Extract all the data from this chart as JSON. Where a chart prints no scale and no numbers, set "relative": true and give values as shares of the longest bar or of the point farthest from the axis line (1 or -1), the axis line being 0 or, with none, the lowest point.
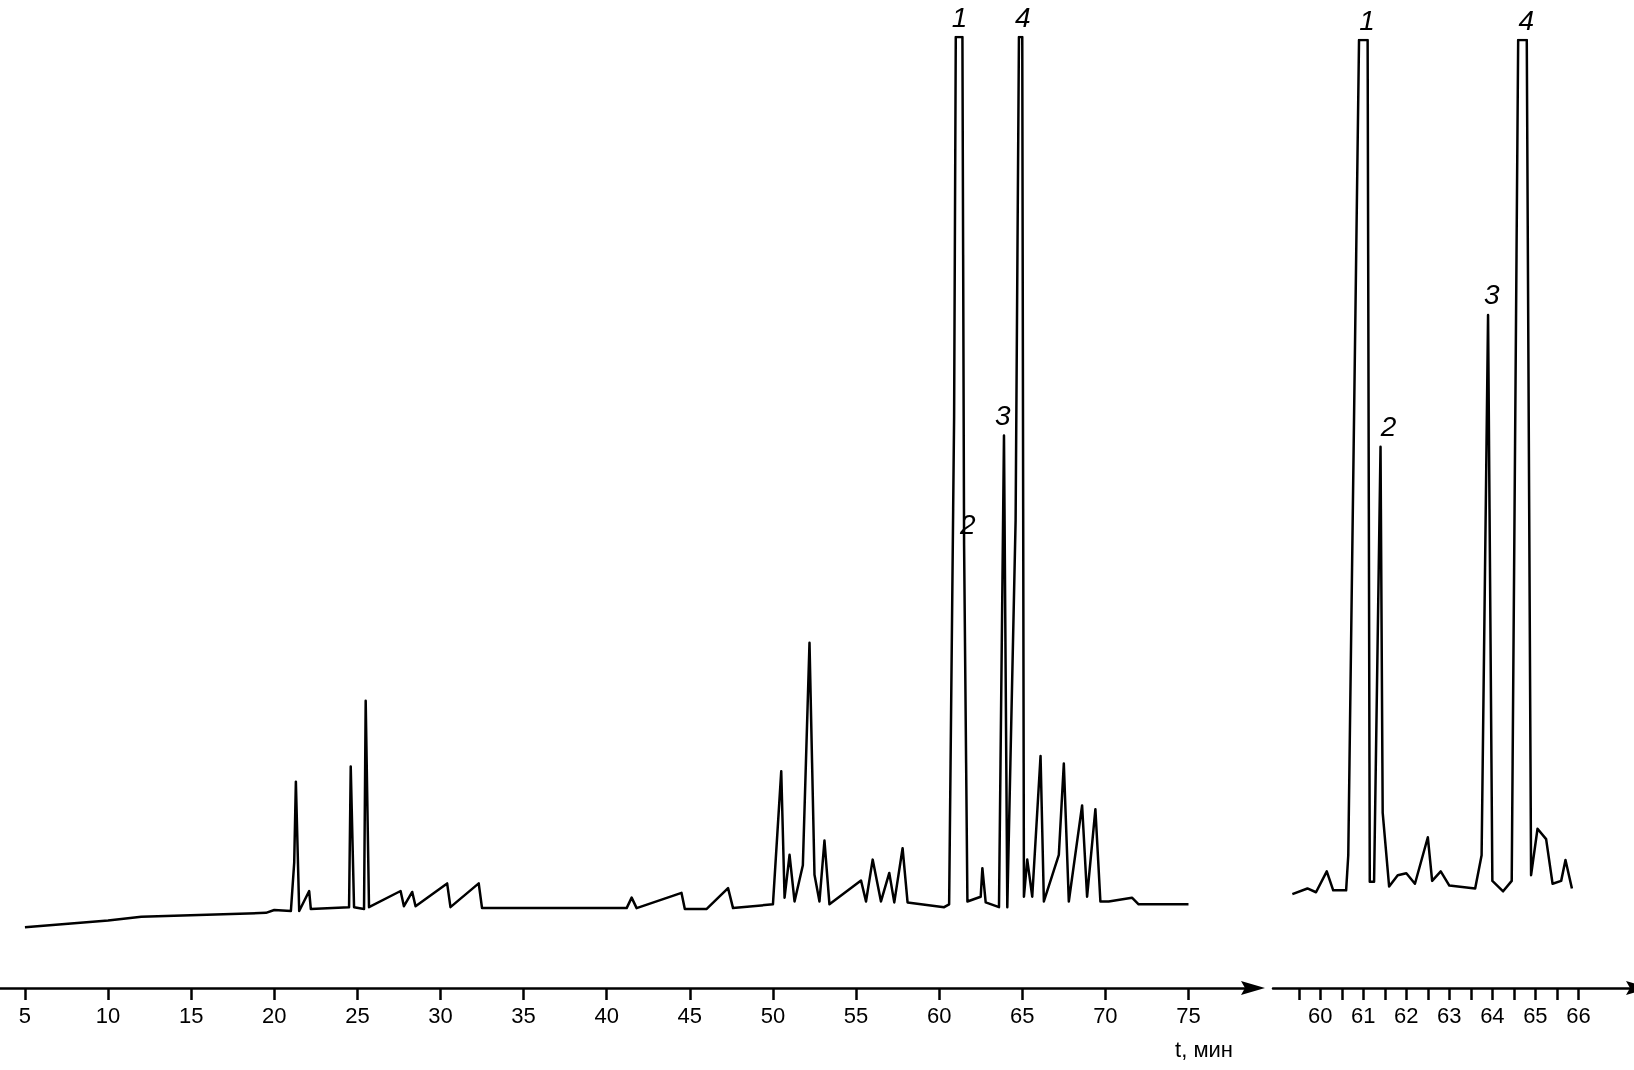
{
  "chart_data": [
    {
      "type": "line",
      "relative": true,
      "color": "#000000",
      "xlabel": "t, мин",
      "tick_labels": "x",
      "xlim": [
        3.5,
        78.4
      ],
      "xticks": [
        5,
        10,
        15,
        20,
        25,
        30,
        35,
        40,
        45,
        50,
        55,
        60,
        65,
        70,
        75
      ],
      "x": [
        5,
        10,
        12,
        19.5,
        20,
        21,
        21.2,
        21.3,
        21.5,
        22.1,
        22.2,
        24.5,
        24.6,
        24.8,
        25.4,
        25.5,
        25.7,
        27.6,
        27.8,
        28.3,
        28.5,
        30.4,
        30.6,
        32.3,
        32.5,
        41.2,
        41.5,
        41.8,
        44.5,
        44.7,
        46,
        47.3,
        47.6,
        50,
        50.5,
        50.7,
        51,
        51.3,
        51.8,
        52.2,
        52.5,
        52.8,
        53.1,
        53.4,
        55.3,
        55.6,
        56,
        56.5,
        57,
        57.3,
        57.8,
        58.1,
        60.3,
        60.6,
        60.9,
        61,
        61.4,
        61.5,
        61.7,
        62.5,
        62.6,
        62.8,
        63.6,
        63.9,
        64.1,
        64.6,
        64.8,
        65,
        65.1,
        65.3,
        65.6,
        66.1,
        66.3,
        67.2,
        67.5,
        67.8,
        68.6,
        68.9,
        69.4,
        69.7,
        70.2,
        71.6,
        72,
        75
      ],
      "values": [
        0.064,
        0.071,
        0.075,
        0.079,
        0.082,
        0.081,
        0.132,
        0.217,
        0.081,
        0.102,
        0.083,
        0.085,
        0.233,
        0.085,
        0.083,
        0.302,
        0.085,
        0.102,
        0.086,
        0.101,
        0.086,
        0.11,
        0.085,
        0.11,
        0.084,
        0.084,
        0.095,
        0.084,
        0.1,
        0.083,
        0.083,
        0.105,
        0.084,
        0.088,
        0.228,
        0.095,
        0.14,
        0.091,
        0.129,
        0.363,
        0.119,
        0.091,
        0.155,
        0.088,
        0.113,
        0.091,
        0.135,
        0.091,
        0.121,
        0.09,
        0.147,
        0.09,
        0.085,
        0.088,
        0.601,
        1,
        1,
        0.466,
        0.091,
        0.096,
        0.126,
        0.09,
        0.085,
        0.581,
        0.085,
        0.492,
        1,
        1,
        0.096,
        0.135,
        0.096,
        0.244,
        0.091,
        0.14,
        0.236,
        0.091,
        0.192,
        0.096,
        0.188,
        0.091,
        0.091,
        0.095,
        0.088,
        0.088
      ],
      "annotations": [
        {
          "text": "1",
          "x": 61.0,
          "y": 1
        },
        {
          "text": "2",
          "x": 61.5,
          "y": 0.466
        },
        {
          "text": "3",
          "x": 63.6,
          "y": 0.581
        },
        {
          "text": "4",
          "x": 64.8,
          "y": 1
        }
      ]
    },
    {
      "type": "line",
      "relative": true,
      "color": "#000000",
      "tick_labels": "x",
      "xlim": [
        58.9,
        67.2
      ],
      "xticks": [
        {
          "value": 59.5,
          "label": null
        },
        60,
        {
          "value": 60.5,
          "label": null
        },
        61,
        {
          "value": 61.5,
          "label": null
        },
        62,
        {
          "value": 62.5,
          "label": null
        },
        63,
        {
          "value": 63.5,
          "label": null
        },
        64,
        {
          "value": 64.5,
          "label": null
        },
        65,
        {
          "value": 65.5,
          "label": null
        },
        66
      ],
      "x": [
        59.35,
        59.7,
        59.9,
        60.15,
        60.3,
        60.6,
        60.65,
        60.9,
        61.1,
        61.15,
        61.25,
        61.4,
        61.45,
        61.6,
        61.8,
        62,
        62.2,
        62.5,
        62.6,
        62.8,
        63,
        63.6,
        63.75,
        63.9,
        64,
        64.25,
        64.45,
        64.6,
        64.8,
        64.9,
        65.05,
        65.25,
        65.4,
        65.6,
        65.7,
        65.85
      ],
      "values": [
        0.099,
        0.105,
        0.101,
        0.123,
        0.103,
        0.103,
        0.14,
        1,
        1,
        0.112,
        0.112,
        0.571,
        0.185,
        0.107,
        0.119,
        0.121,
        0.11,
        0.159,
        0.113,
        0.123,
        0.108,
        0.105,
        0.14,
        0.71,
        0.113,
        0.102,
        0.113,
        1,
        1,
        0.119,
        0.168,
        0.157,
        0.11,
        0.113,
        0.135,
        0.105
      ],
      "annotations": [
        {
          "text": "1",
          "x": 61.0,
          "y": 1
        },
        {
          "text": "2",
          "x": 61.5,
          "y": 0.571
        },
        {
          "text": "3",
          "x": 63.9,
          "y": 0.71
        },
        {
          "text": "4",
          "x": 64.7,
          "y": 1
        }
      ]
    }
  ]
}
